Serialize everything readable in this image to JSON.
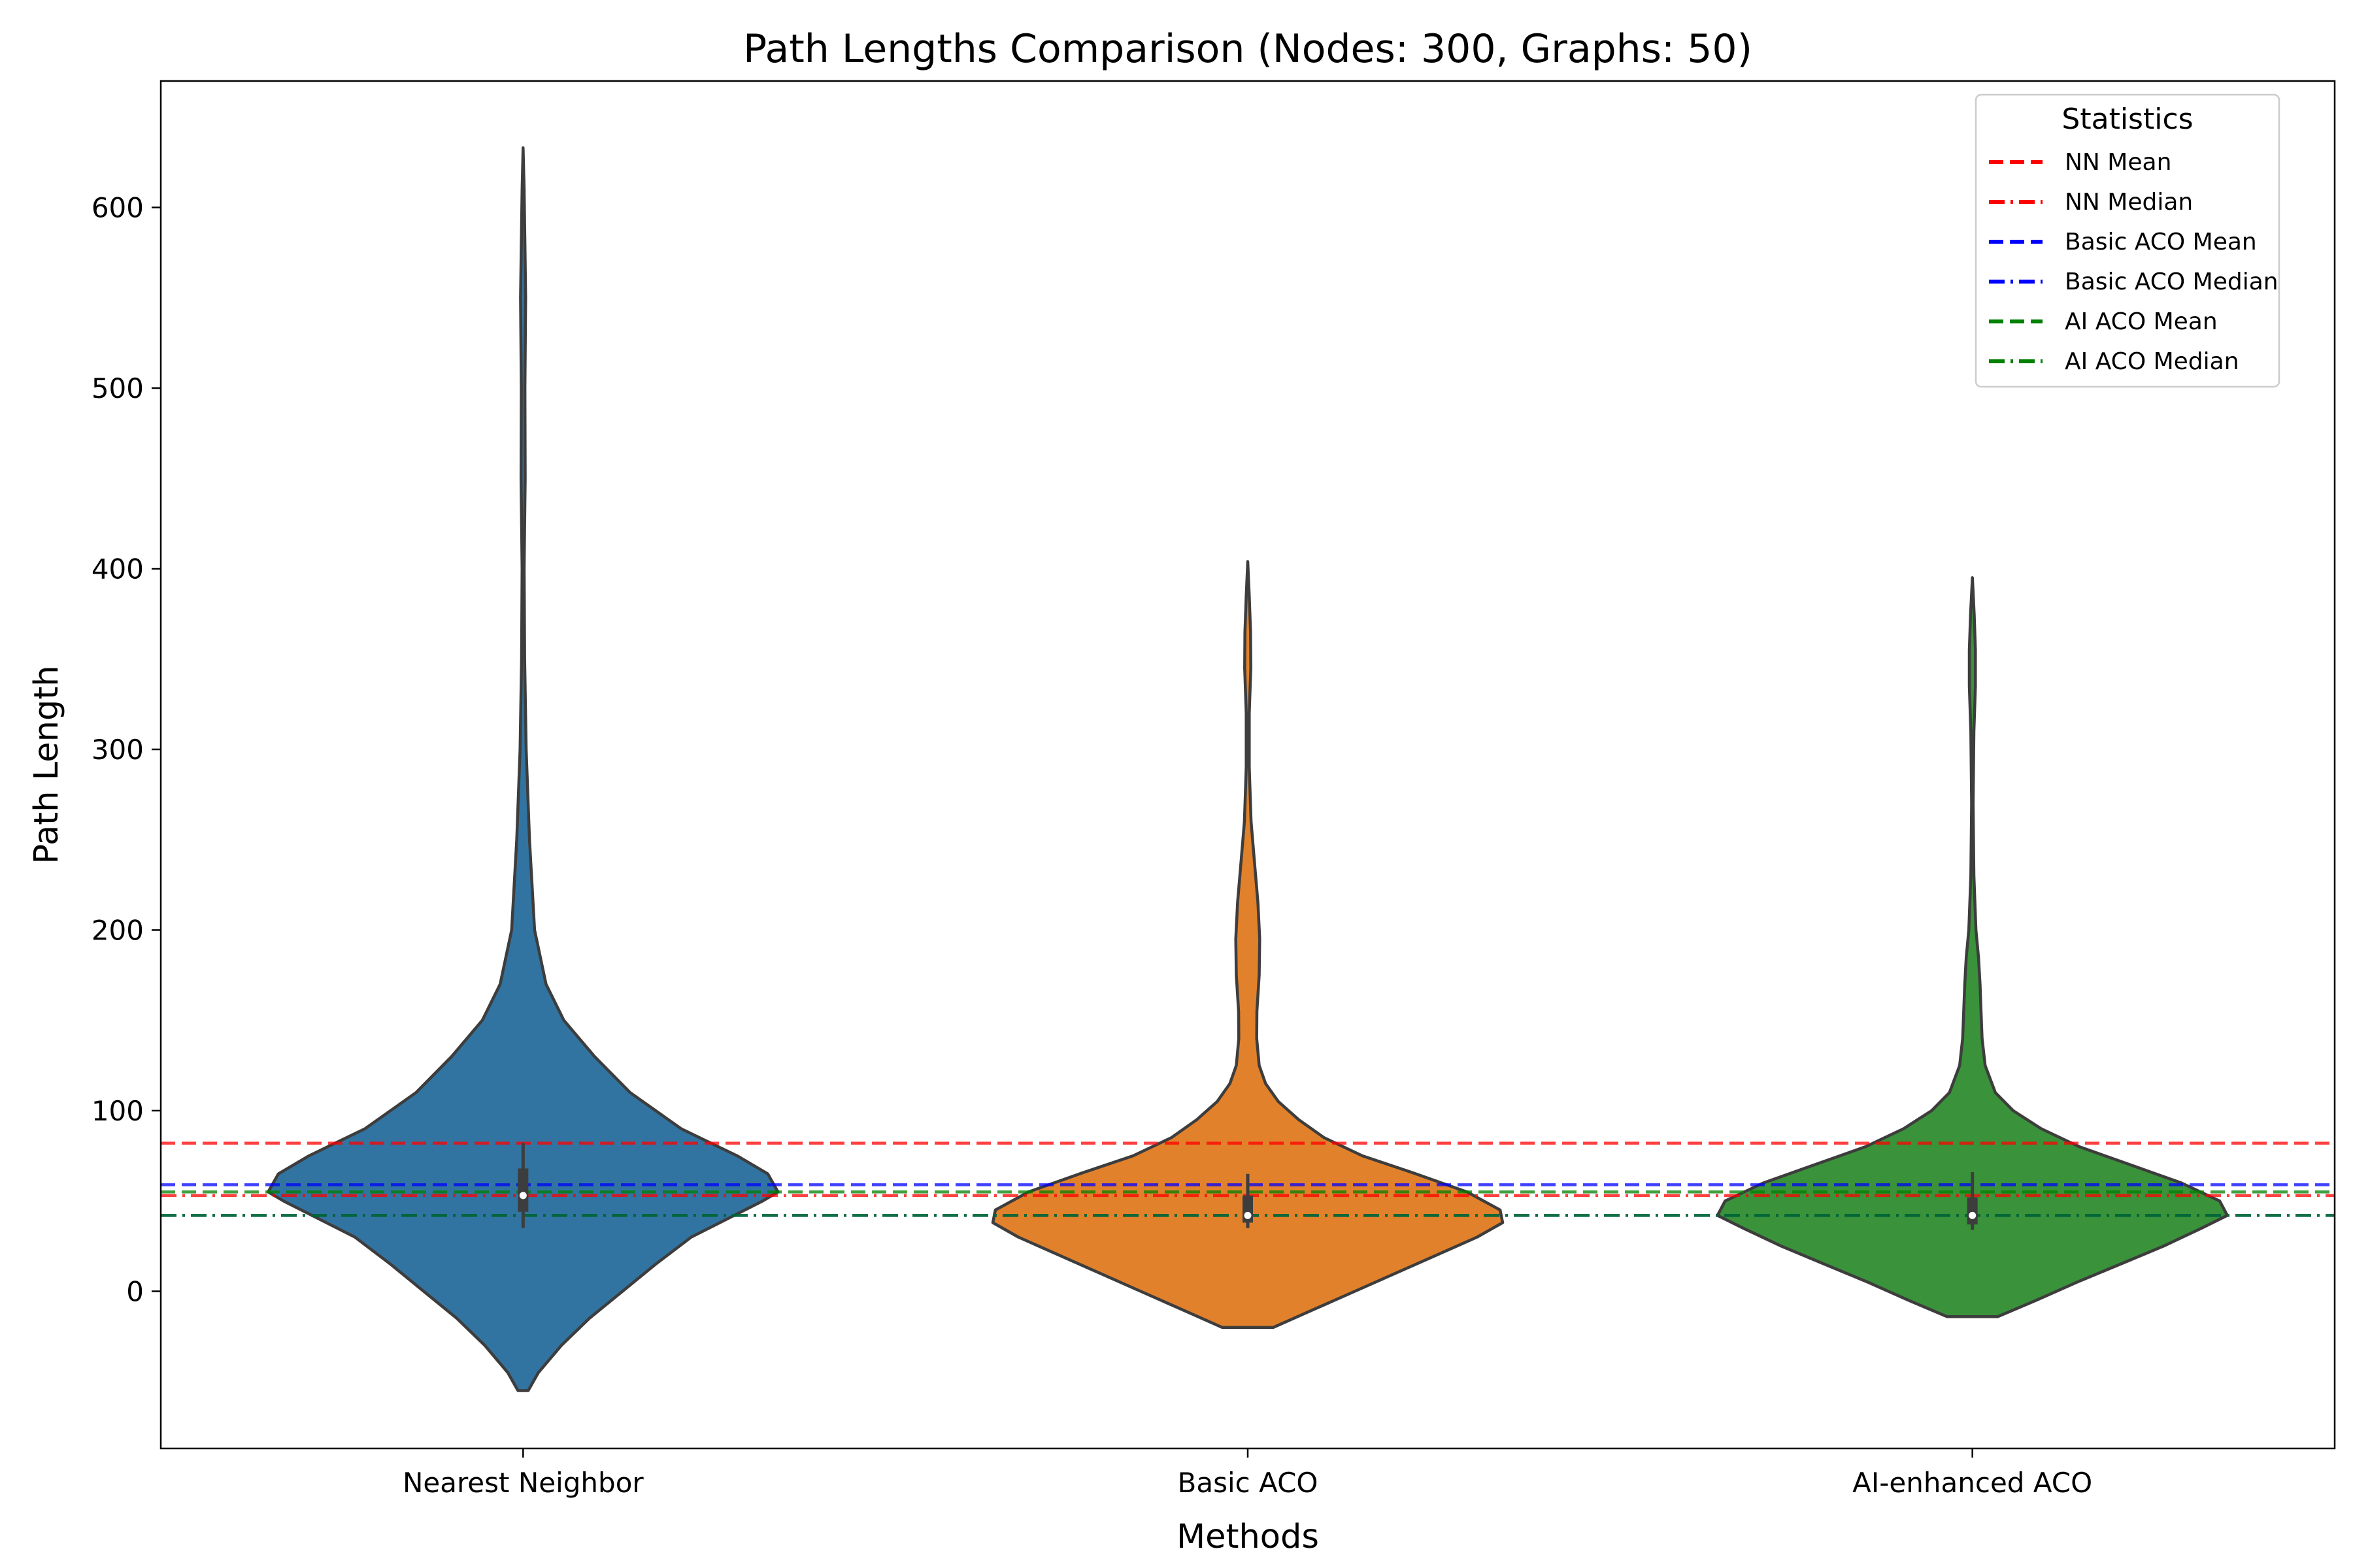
{
  "chart_data": {
    "type": "violin",
    "title": "Path Lengths Comparison (Nodes: 300, Graphs: 50)",
    "xlabel": "Methods",
    "ylabel": "Path Length",
    "categories": [
      "Nearest Neighbor",
      "Basic ACO",
      "AI-enhanced ACO"
    ],
    "ylim": [
      -87,
      670
    ],
    "yticks": [
      0,
      100,
      200,
      300,
      400,
      500,
      600
    ],
    "grid": false,
    "legend": {
      "title": "Statistics",
      "placement": "top-right",
      "entries": [
        {
          "label": "NN Mean",
          "color": "#ff0000",
          "style": "dashed"
        },
        {
          "label": "NN Median",
          "color": "#ff0000",
          "style": "dashdot"
        },
        {
          "label": "Basic ACO Mean",
          "color": "#0000ff",
          "style": "dashed"
        },
        {
          "label": "Basic ACO Median",
          "color": "#0000ff",
          "style": "dashdot"
        },
        {
          "label": "AI ACO Mean",
          "color": "#008000",
          "style": "dashed"
        },
        {
          "label": "AI ACO Median",
          "color": "#008000",
          "style": "dashdot"
        }
      ]
    },
    "reference_lines": [
      {
        "name": "NN Mean",
        "y": 82,
        "color": "#ff0000",
        "style": "dashed"
      },
      {
        "name": "NN Median",
        "y": 53,
        "color": "#ff0000",
        "style": "dashdot"
      },
      {
        "name": "Basic ACO Mean",
        "y": 59,
        "color": "#0000ff",
        "style": "dashed"
      },
      {
        "name": "Basic ACO Median",
        "y": 42,
        "color": "#0000ff",
        "style": "dashdot"
      },
      {
        "name": "AI ACO Mean",
        "y": 55,
        "color": "#008000",
        "style": "dashed"
      },
      {
        "name": "AI ACO Median",
        "y": 42,
        "color": "#008000",
        "style": "dashdot"
      }
    ],
    "violins": [
      {
        "category": "Nearest Neighbor",
        "color": "#3274a1",
        "min": 35,
        "q1": 44,
        "median": 53,
        "q3": 68,
        "max": 82,
        "density": [
          [
            -55,
            0.02
          ],
          [
            -45,
            0.06
          ],
          [
            -30,
            0.15
          ],
          [
            -15,
            0.26
          ],
          [
            0,
            0.39
          ],
          [
            15,
            0.52
          ],
          [
            30,
            0.66
          ],
          [
            40,
            0.8
          ],
          [
            50,
            0.94
          ],
          [
            55,
            1.0
          ],
          [
            65,
            0.96
          ],
          [
            75,
            0.84
          ],
          [
            90,
            0.62
          ],
          [
            110,
            0.42
          ],
          [
            130,
            0.28
          ],
          [
            150,
            0.16
          ],
          [
            170,
            0.09
          ],
          [
            200,
            0.045
          ],
          [
            250,
            0.025
          ],
          [
            300,
            0.012
          ],
          [
            350,
            0.006
          ],
          [
            400,
            0.004
          ],
          [
            450,
            0.008
          ],
          [
            500,
            0.007
          ],
          [
            550,
            0.01
          ],
          [
            580,
            0.007
          ],
          [
            610,
            0.004
          ],
          [
            633,
            0.0
          ]
        ]
      },
      {
        "category": "Basic ACO",
        "color": "#e1812c",
        "min": 35,
        "q1": 38,
        "median": 42,
        "q3": 53,
        "max": 65,
        "density": [
          [
            -20,
            0.1
          ],
          [
            -10,
            0.26
          ],
          [
            0,
            0.42
          ],
          [
            10,
            0.58
          ],
          [
            20,
            0.74
          ],
          [
            30,
            0.9
          ],
          [
            38,
            1.0
          ],
          [
            45,
            0.99
          ],
          [
            55,
            0.86
          ],
          [
            65,
            0.66
          ],
          [
            75,
            0.45
          ],
          [
            85,
            0.3
          ],
          [
            95,
            0.2
          ],
          [
            105,
            0.12
          ],
          [
            115,
            0.07
          ],
          [
            125,
            0.045
          ],
          [
            140,
            0.035
          ],
          [
            155,
            0.036
          ],
          [
            175,
            0.045
          ],
          [
            195,
            0.047
          ],
          [
            215,
            0.04
          ],
          [
            235,
            0.028
          ],
          [
            260,
            0.013
          ],
          [
            290,
            0.006
          ],
          [
            320,
            0.006
          ],
          [
            345,
            0.012
          ],
          [
            365,
            0.011
          ],
          [
            385,
            0.006
          ],
          [
            404,
            0.0
          ]
        ]
      },
      {
        "category": "AI-enhanced ACO",
        "color": "#3a923a",
        "min": 34,
        "q1": 37,
        "median": 42,
        "q3": 52,
        "max": 66,
        "density": [
          [
            -14,
            0.1
          ],
          [
            -5,
            0.25
          ],
          [
            5,
            0.41
          ],
          [
            15,
            0.58
          ],
          [
            25,
            0.75
          ],
          [
            35,
            0.9
          ],
          [
            42,
            1.0
          ],
          [
            50,
            0.97
          ],
          [
            60,
            0.82
          ],
          [
            70,
            0.62
          ],
          [
            80,
            0.42
          ],
          [
            90,
            0.27
          ],
          [
            100,
            0.16
          ],
          [
            110,
            0.09
          ],
          [
            125,
            0.05
          ],
          [
            140,
            0.038
          ],
          [
            155,
            0.034
          ],
          [
            170,
            0.03
          ],
          [
            185,
            0.024
          ],
          [
            200,
            0.014
          ],
          [
            230,
            0.006
          ],
          [
            270,
            0.003
          ],
          [
            310,
            0.006
          ],
          [
            335,
            0.012
          ],
          [
            355,
            0.012
          ],
          [
            375,
            0.007
          ],
          [
            395,
            0.0
          ]
        ]
      }
    ]
  }
}
